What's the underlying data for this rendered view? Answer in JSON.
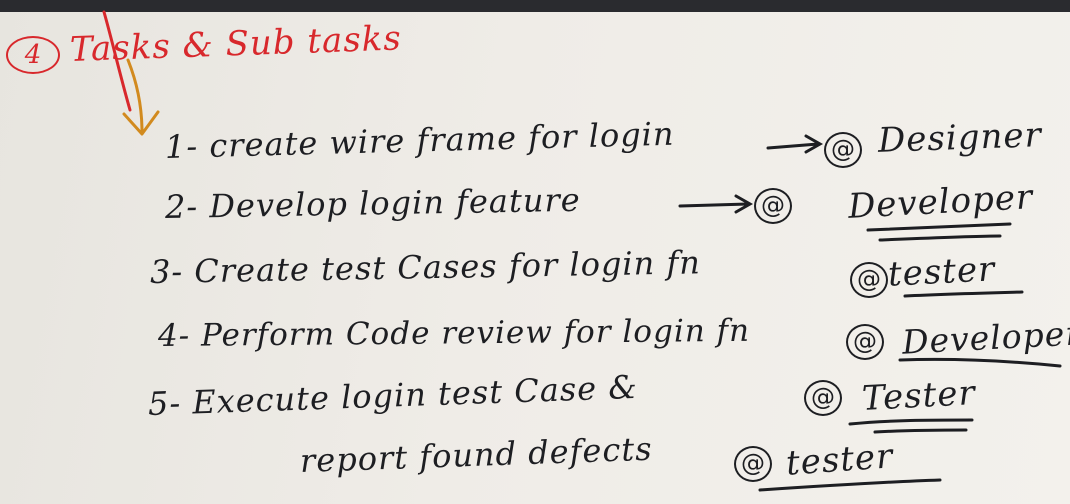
{
  "heading": {
    "number": "4",
    "text": "Tasks & Sub tasks"
  },
  "tasks": [
    {
      "text": "1- create wire frame for login",
      "mention": "@",
      "role": "Designer"
    },
    {
      "text": "2- Develop login feature",
      "mention": "@",
      "role": "Developer"
    },
    {
      "text": "3- Create test Cases for login fn",
      "mention": "@",
      "role": "tester"
    },
    {
      "text": "4- Perform Code review for login fn",
      "mention": "@",
      "role": "Developer"
    },
    {
      "text": "5- Execute login test Case &",
      "mention": "@",
      "role": "Tester"
    },
    {
      "text": "report found defects",
      "mention": "@",
      "role": "tester"
    }
  ],
  "colors": {
    "red_ink": "#d8282c",
    "black_ink": "#1d1e22",
    "whiteboard": "#eeebe6"
  }
}
